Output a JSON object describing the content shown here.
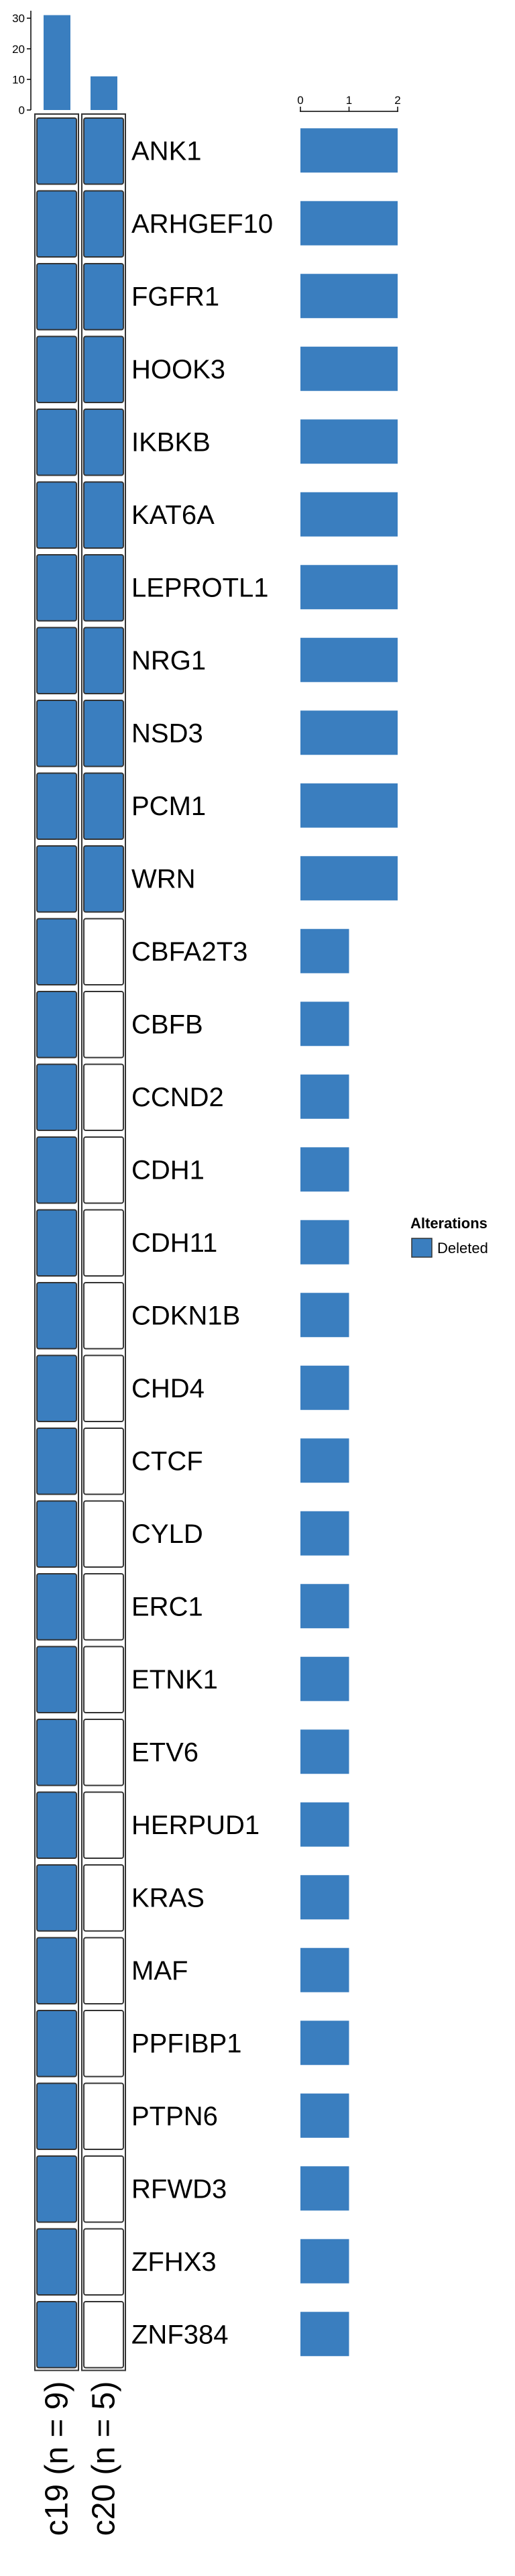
{
  "chart_data": {
    "type": "heatmap",
    "samples": [
      "c19 (n = 9)",
      "c20 (n = 5)"
    ],
    "genes": [
      "ANK1",
      "ARHGEF10",
      "FGFR1",
      "HOOK3",
      "IKBKB",
      "KAT6A",
      "LEPROTL1",
      "NRG1",
      "NSD3",
      "PCM1",
      "WRN",
      "CBFA2T3",
      "CBFB",
      "CCND2",
      "CDH1",
      "CDH11",
      "CDKN1B",
      "CHD4",
      "CTCF",
      "CYLD",
      "ERC1",
      "ETNK1",
      "ETV6",
      "HERPUD1",
      "KRAS",
      "MAF",
      "PPFIBP1",
      "PTPN6",
      "RFWD3",
      "ZFHX3",
      "ZNF384"
    ],
    "matrix": [
      [
        1,
        1
      ],
      [
        1,
        1
      ],
      [
        1,
        1
      ],
      [
        1,
        1
      ],
      [
        1,
        1
      ],
      [
        1,
        1
      ],
      [
        1,
        1
      ],
      [
        1,
        1
      ],
      [
        1,
        1
      ],
      [
        1,
        1
      ],
      [
        1,
        1
      ],
      [
        1,
        0
      ],
      [
        1,
        0
      ],
      [
        1,
        0
      ],
      [
        1,
        0
      ],
      [
        1,
        0
      ],
      [
        1,
        0
      ],
      [
        1,
        0
      ],
      [
        1,
        0
      ],
      [
        1,
        0
      ],
      [
        1,
        0
      ],
      [
        1,
        0
      ],
      [
        1,
        0
      ],
      [
        1,
        0
      ],
      [
        1,
        0
      ],
      [
        1,
        0
      ],
      [
        1,
        0
      ],
      [
        1,
        0
      ],
      [
        1,
        0
      ],
      [
        1,
        0
      ],
      [
        1,
        0
      ]
    ],
    "top_bar": {
      "values": [
        31,
        11
      ],
      "ticks": [
        "0",
        "10",
        "20",
        "30"
      ],
      "ylim": [
        0,
        32
      ]
    },
    "right_bar": {
      "values": [
        2,
        2,
        2,
        2,
        2,
        2,
        2,
        2,
        2,
        2,
        2,
        1,
        1,
        1,
        1,
        1,
        1,
        1,
        1,
        1,
        1,
        1,
        1,
        1,
        1,
        1,
        1,
        1,
        1,
        1,
        1
      ],
      "ticks": [
        "0",
        "1",
        "2"
      ],
      "xlim": [
        0,
        2
      ]
    },
    "legend": {
      "title": "Alterations",
      "items": [
        {
          "label": "Deleted",
          "color": "#3a7ebf"
        }
      ],
      "placement": "right"
    },
    "colors": {
      "deleted": "#3a7ebf",
      "empty": "#ffffff",
      "border": "#333333"
    }
  }
}
